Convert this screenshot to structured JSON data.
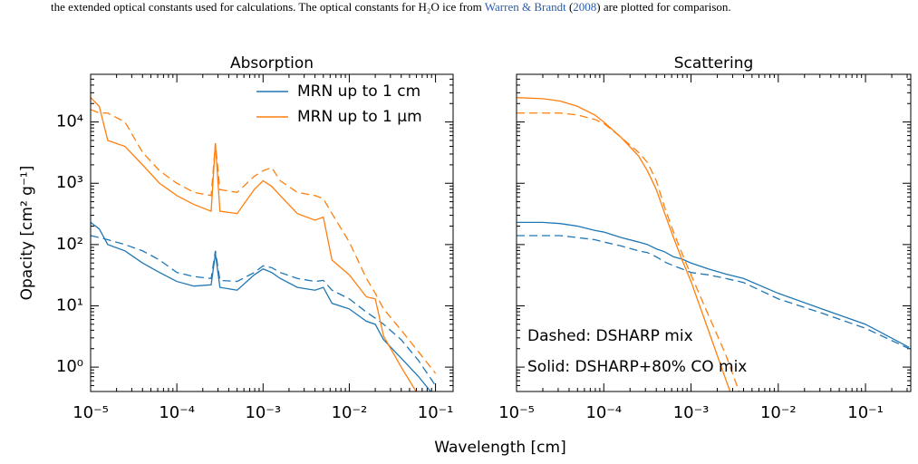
{
  "caption": {
    "parts": [
      "the extended optical constants used for calculations. The optical constants for H₂O ice from ",
      "Warren & Brandt",
      " (",
      "2008",
      ") are plotted for comparison."
    ]
  },
  "figure": {
    "xlabel": "Wavelength [cm]"
  },
  "chart_data": [
    {
      "type": "line",
      "title": "Absorption",
      "ylabel": "Opacity [cm² g⁻¹]",
      "xscale": "log",
      "yscale": "log",
      "xlim": [
        1e-05,
        0.16
      ],
      "ylim": [
        0.4,
        60000
      ],
      "xticks": [
        {
          "value": 1e-05,
          "label": "10⁻⁵"
        },
        {
          "value": 0.0001,
          "label": "10⁻⁴"
        },
        {
          "value": 0.001,
          "label": "10⁻³"
        },
        {
          "value": 0.01,
          "label": "10⁻²"
        },
        {
          "value": 0.1,
          "label": "10⁻¹"
        }
      ],
      "yticks": [
        {
          "value": 1,
          "label": "10⁰"
        },
        {
          "value": 10,
          "label": "10¹"
        },
        {
          "value": 100,
          "label": "10²"
        },
        {
          "value": 1000,
          "label": "10³"
        },
        {
          "value": 10000,
          "label": "10⁴"
        }
      ],
      "ytick_labels": true,
      "legend": "upper right",
      "x": [
        1e-05,
        1.26e-05,
        1.58e-05,
        2.5e-05,
        4e-05,
        6.3e-05,
        0.0001,
        0.000158,
        0.00025,
        0.00028,
        0.000316,
        0.0005,
        0.00079,
        0.001,
        0.00126,
        0.00158,
        0.0025,
        0.004,
        0.005,
        0.0063,
        0.01,
        0.0158,
        0.02,
        0.025,
        0.04,
        0.063,
        0.1
      ],
      "series": [
        {
          "name": "MRN up to 1 cm",
          "color": "#1f77b4",
          "style": "solid",
          "values": [
            230,
            180,
            100,
            79,
            50,
            35,
            25,
            21,
            22,
            71,
            20,
            18,
            32,
            40,
            35,
            28,
            20,
            18,
            20,
            11,
            8.9,
            5.6,
            5.0,
            2.8,
            1.4,
            0.71,
            0.32
          ]
        },
        {
          "color": "#1f77b4",
          "style": "dashed",
          "values": [
            140,
            130,
            120,
            100,
            79,
            56,
            35,
            30,
            28,
            79,
            26,
            25,
            35,
            45,
            42,
            35,
            28,
            25,
            26,
            18,
            13,
            7.9,
            6.3,
            5.0,
            2.8,
            1.3,
            0.5
          ]
        },
        {
          "name": "MRN up to 1 μm",
          "color": "#ff7f0e",
          "style": "solid",
          "values": [
            25000,
            18000,
            5000,
            4000,
            2000,
            1000,
            630,
            450,
            350,
            4500,
            350,
            320,
            790,
            1100,
            890,
            630,
            320,
            250,
            280,
            56,
            32,
            14,
            13,
            3.2,
            1.0,
            0.35,
            0.13
          ]
        },
        {
          "color": "#ff7f0e",
          "style": "dashed",
          "values": [
            16000,
            14000,
            14000,
            10000,
            3200,
            1600,
            1000,
            710,
            630,
            4500,
            790,
            710,
            1300,
            1600,
            1800,
            1100,
            710,
            630,
            560,
            320,
            110,
            28,
            16,
            8.9,
            4.0,
            1.8,
            0.79
          ]
        }
      ]
    },
    {
      "type": "line",
      "title": "Scattering",
      "xscale": "log",
      "yscale": "log",
      "xlim": [
        1e-05,
        0.33
      ],
      "ylim": [
        0.4,
        60000
      ],
      "xticks": [
        {
          "value": 1e-05,
          "label": "10⁻⁵"
        },
        {
          "value": 0.0001,
          "label": "10⁻⁴"
        },
        {
          "value": 0.001,
          "label": "10⁻³"
        },
        {
          "value": 0.01,
          "label": "10⁻²"
        },
        {
          "value": 0.1,
          "label": "10⁻¹"
        }
      ],
      "yticks": [
        1,
        10,
        100,
        1000,
        10000
      ],
      "ytick_labels": false,
      "annotations": [
        "Dashed: DSHARP mix",
        "Solid: DSHARP+80% CO mix"
      ],
      "x": [
        1e-05,
        2e-05,
        3.16e-05,
        5e-05,
        7.9e-05,
        0.0001,
        0.000158,
        0.00025,
        0.000316,
        0.0004,
        0.0005,
        0.00063,
        0.00079,
        0.001,
        0.00158,
        0.0025,
        0.004,
        0.01,
        0.0316,
        0.1,
        0.316
      ],
      "series": [
        {
          "color": "#1f77b4",
          "style": "solid",
          "values": [
            230,
            230,
            220,
            200,
            170,
            160,
            130,
            110,
            100,
            85,
            76,
            63,
            58,
            50,
            40,
            33,
            28,
            16,
            8.9,
            5.0,
            2.1
          ]
        },
        {
          "color": "#1f77b4",
          "style": "dashed",
          "values": [
            140,
            140,
            140,
            130,
            120,
            110,
            95,
            79,
            74,
            63,
            52,
            45,
            40,
            35,
            32,
            28,
            24,
            13,
            7.6,
            4.3,
            2.0
          ]
        },
        {
          "color": "#ff7f0e",
          "style": "solid",
          "values": [
            25000,
            24000,
            22000,
            18000,
            13000,
            10000,
            5600,
            2800,
            1600,
            790,
            320,
            130,
            56,
            25,
            4.0,
            0.63,
            0.1,
            null,
            null,
            null,
            null
          ]
        },
        {
          "color": "#ff7f0e",
          "style": "dashed",
          "values": [
            14000,
            14000,
            14000,
            13000,
            11000,
            9500,
            5600,
            3200,
            2200,
            1100,
            400,
            160,
            71,
            32,
            7.1,
            1.6,
            0.25,
            null,
            null,
            null,
            null
          ]
        }
      ]
    }
  ]
}
